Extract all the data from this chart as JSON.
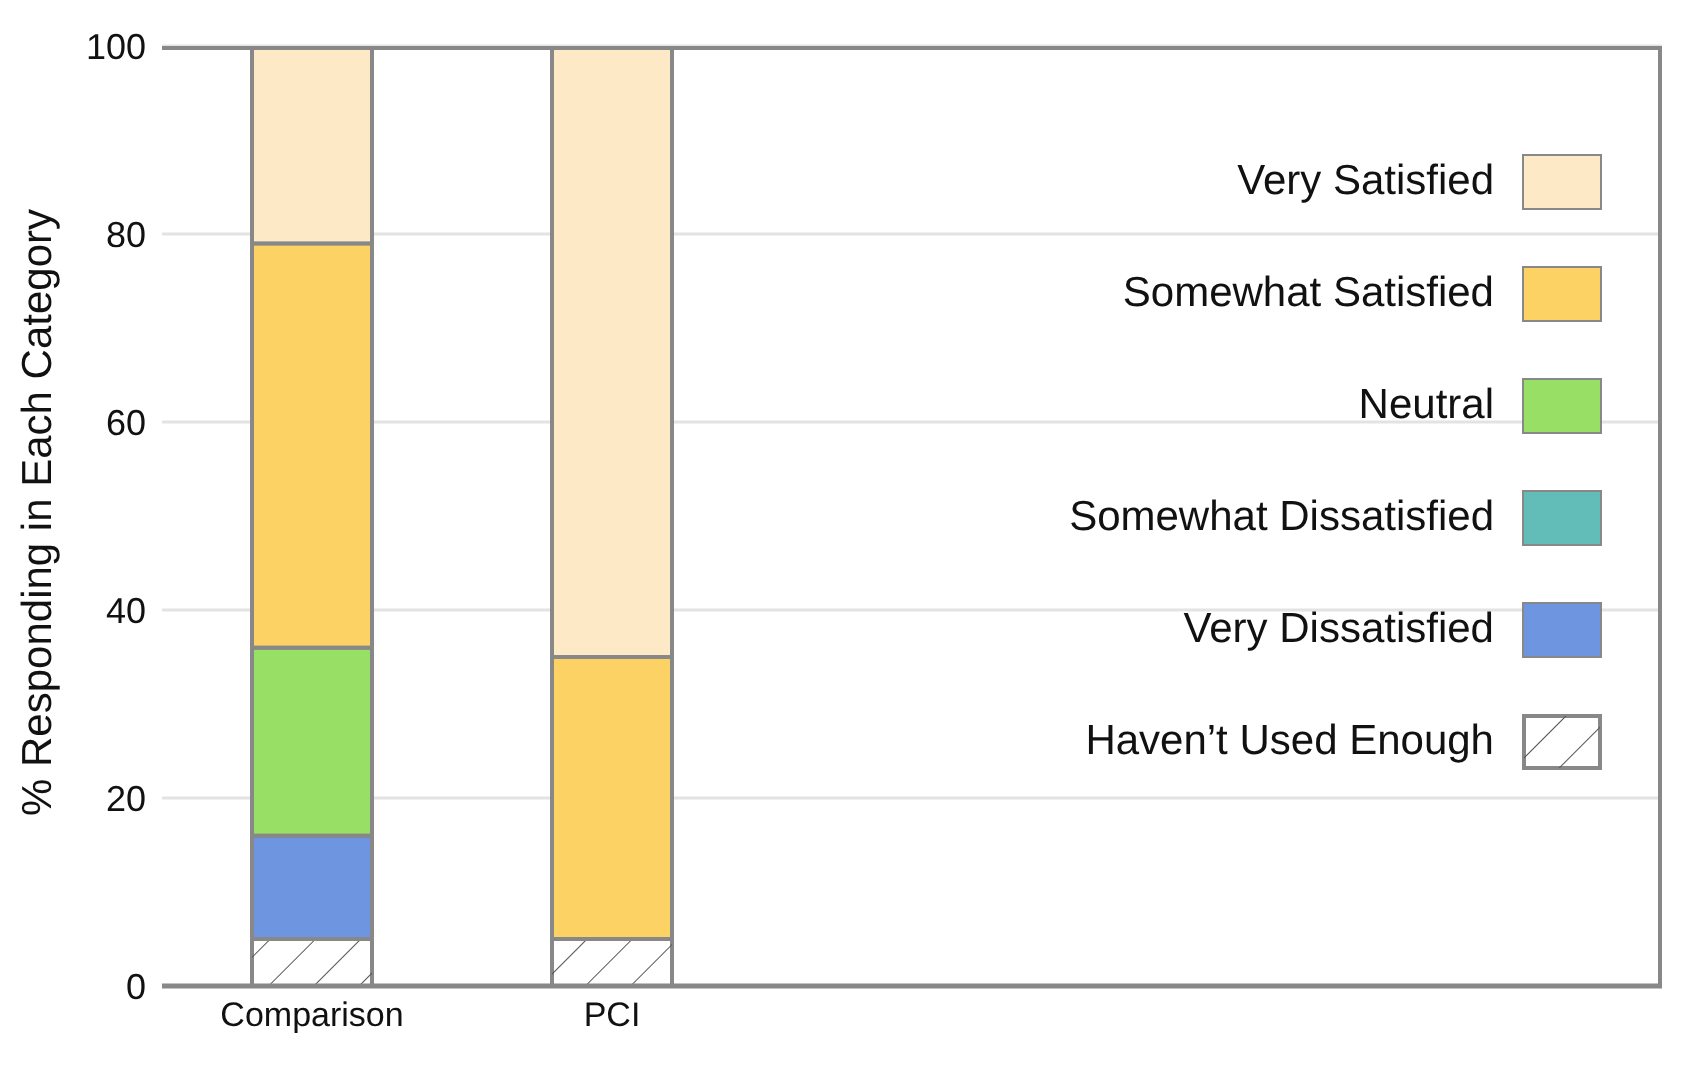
{
  "chart_data": {
    "type": "bar",
    "stacked": true,
    "ylabel": "% Responding in Each Category",
    "categories": [
      "Comparison",
      "PCI",
      null,
      null,
      null
    ],
    "series": [
      {
        "name": "Haven’t Used Enough",
        "color": "#ffffff",
        "values": [
          5,
          5,
          null,
          null,
          null
        ]
      },
      {
        "name": "Very Dissatisfied",
        "color": "#6d95e0",
        "values": [
          11,
          0,
          null,
          null,
          null
        ]
      },
      {
        "name": "Somewhat Dissatisfied",
        "color": "#62bdb8",
        "values": [
          0,
          0,
          null,
          null,
          null
        ]
      },
      {
        "name": "Neutral",
        "color": "#98e065",
        "values": [
          20,
          0,
          null,
          null,
          null
        ]
      },
      {
        "name": "Somewhat Satisfied",
        "color": "#fdd264",
        "values": [
          43,
          30,
          null,
          null,
          null
        ]
      },
      {
        "name": "Very Satisfied",
        "color": "#fde9c6",
        "values": [
          21,
          65,
          null,
          null,
          null
        ]
      }
    ],
    "ylim": [
      0,
      100
    ],
    "yticks": [
      0,
      20,
      40,
      60,
      80,
      100
    ],
    "grid": "y",
    "legend": "right"
  }
}
